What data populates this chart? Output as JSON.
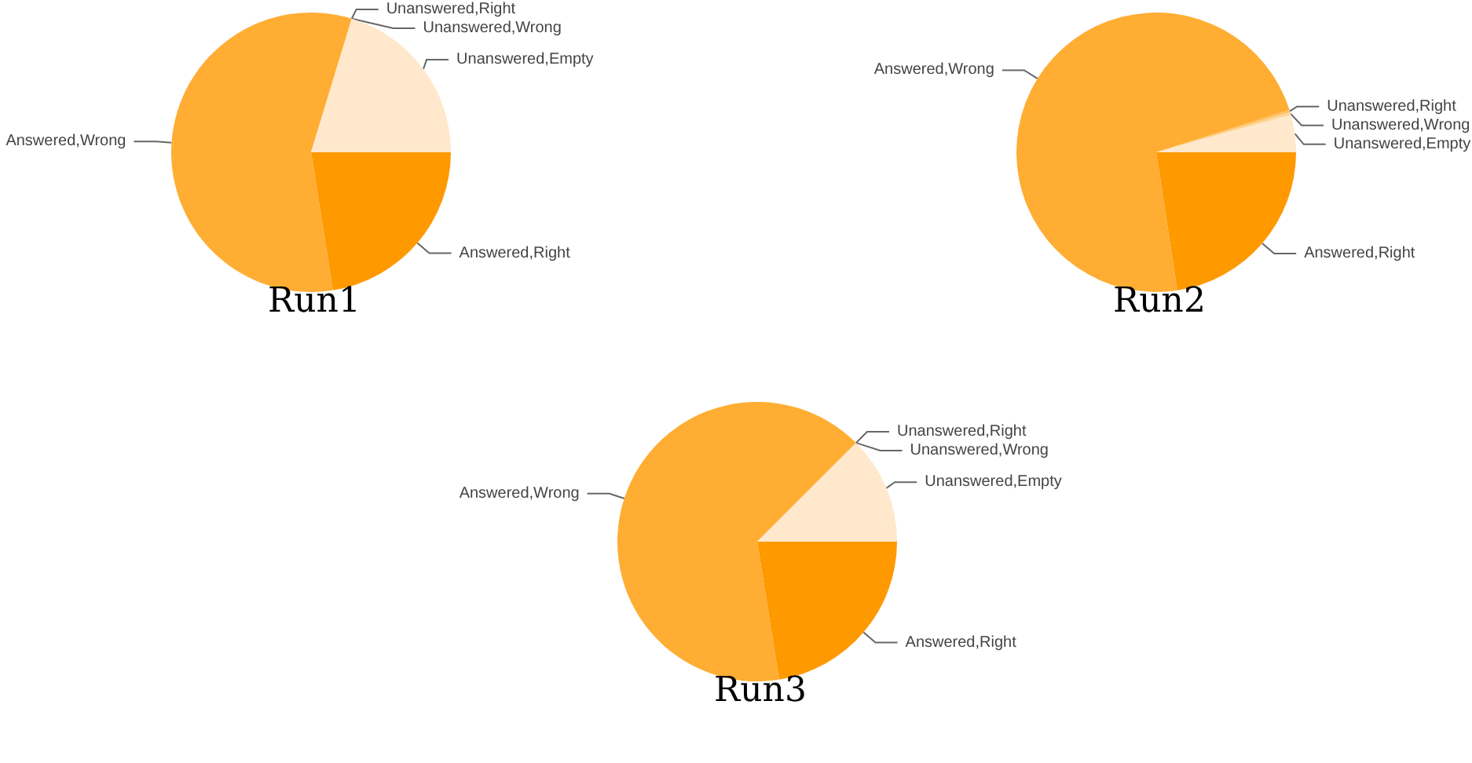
{
  "chart_data": [
    {
      "type": "pie",
      "title": "Run1",
      "categories": [
        "Answered,Right",
        "Answered,Wrong",
        "Unanswered,Right",
        "Unanswered,Wrong",
        "Unanswered,Empty"
      ],
      "values": [
        22.5,
        57.2,
        0,
        0,
        20.3
      ],
      "colors": [
        "#ff9900",
        "#ffad33",
        "#ffc266",
        "#ffd699",
        "#ffe8cc"
      ]
    },
    {
      "type": "pie",
      "title": "Run2",
      "categories": [
        "Answered,Right",
        "Answered,Wrong",
        "Unanswered,Right",
        "Unanswered,Wrong",
        "Unanswered,Empty"
      ],
      "values": [
        22.6,
        72.5,
        0.3,
        0.3,
        4.3
      ],
      "colors": [
        "#ff9900",
        "#ffad33",
        "#ffc266",
        "#ffd699",
        "#ffe8cc"
      ]
    },
    {
      "type": "pie",
      "title": "Run3",
      "categories": [
        "Answered,Right",
        "Answered,Wrong",
        "Unanswered,Right",
        "Unanswered,Wrong",
        "Unanswered,Empty"
      ],
      "values": [
        22.5,
        65,
        0,
        0,
        12.5
      ],
      "colors": [
        "#ff9900",
        "#ffad33",
        "#ffc266",
        "#ffd699",
        "#ffe8cc"
      ]
    }
  ]
}
